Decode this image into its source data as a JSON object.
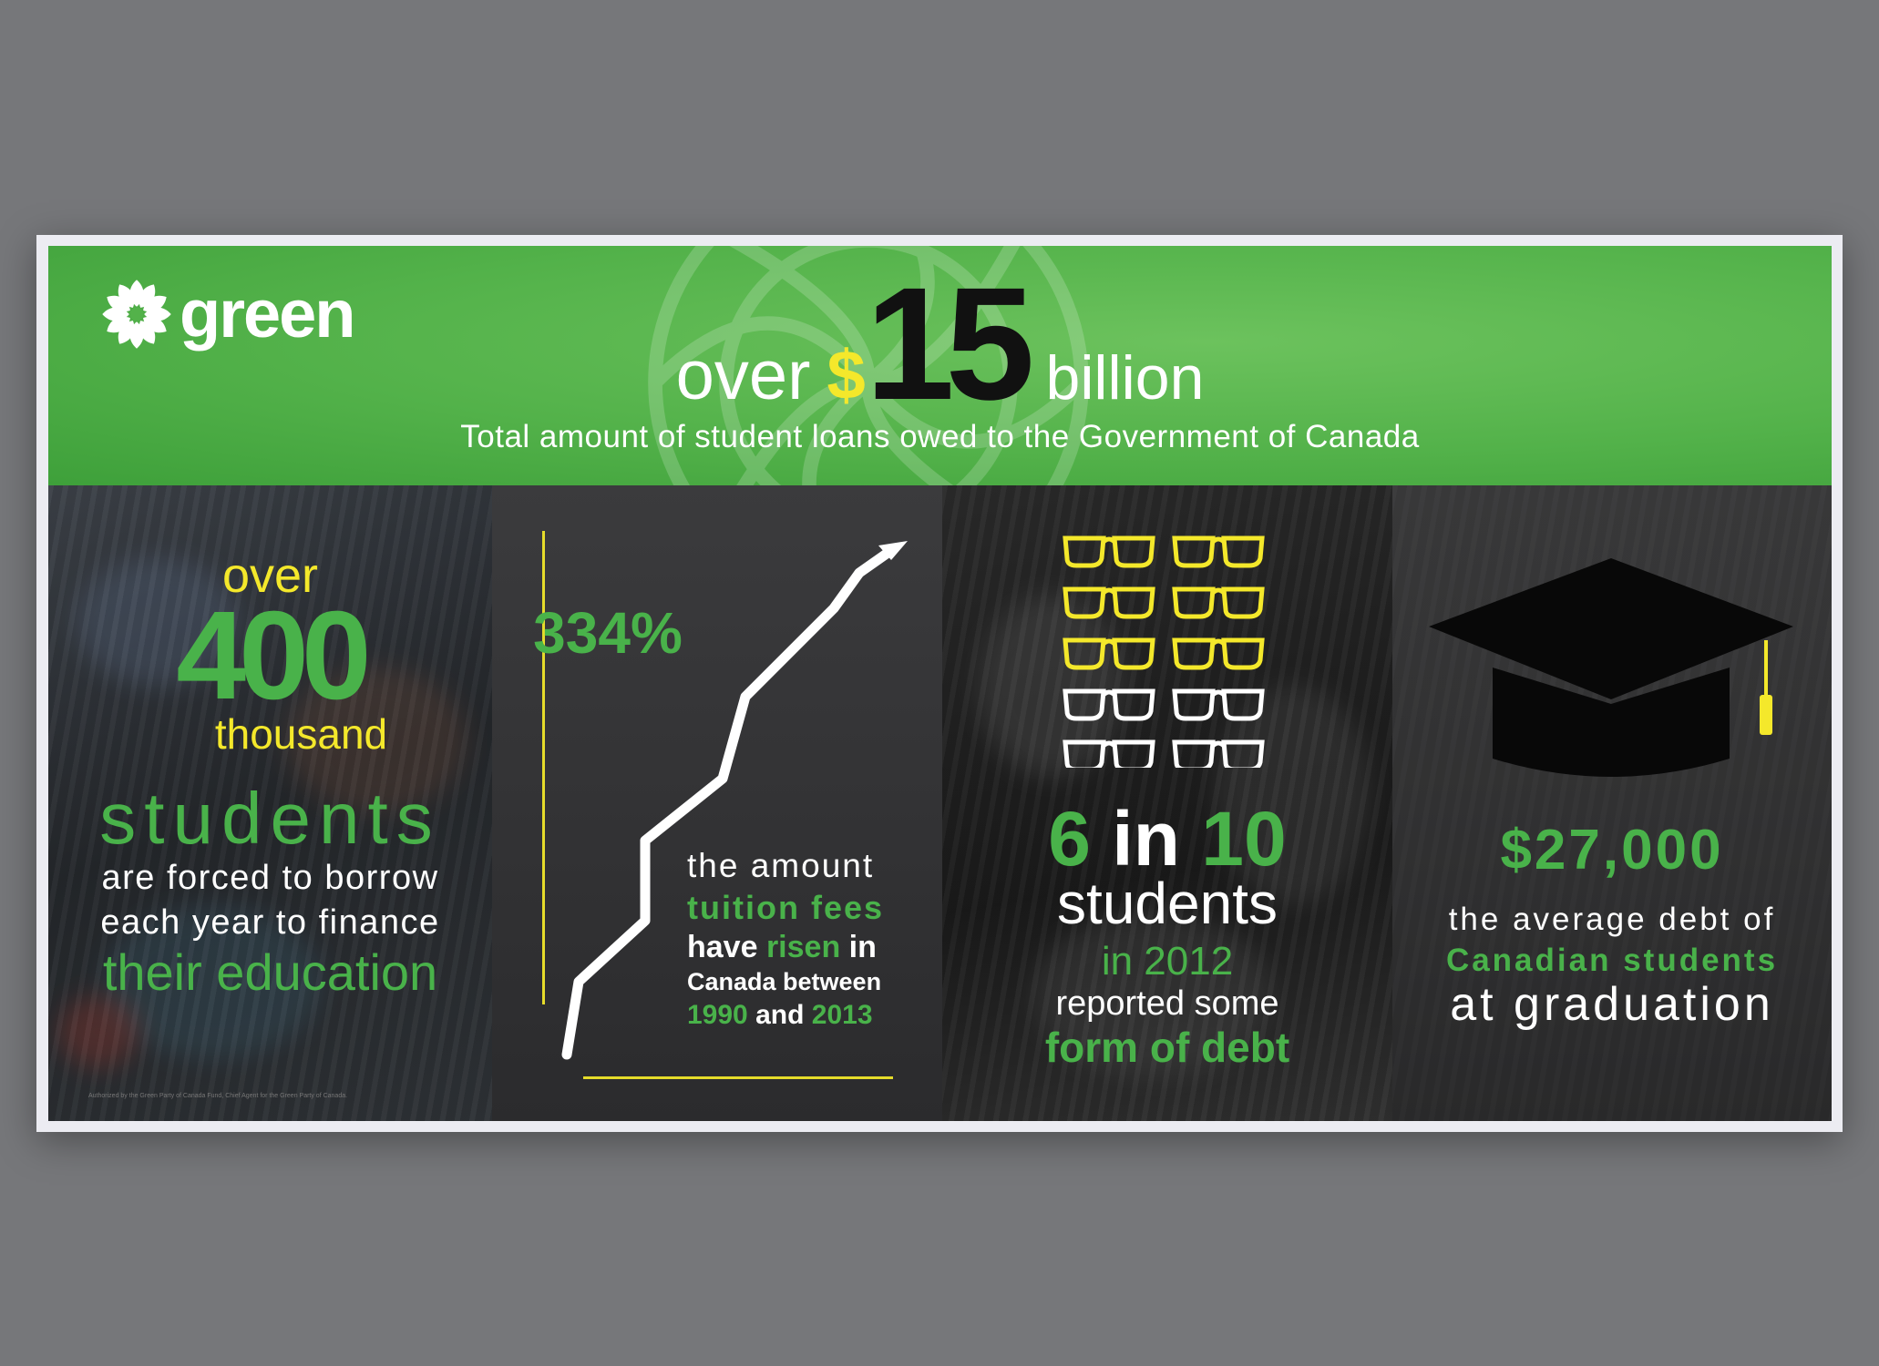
{
  "brand": {
    "logo_text": "green"
  },
  "header": {
    "over": "over",
    "currency": "$",
    "amount": "15",
    "unit": "billion",
    "caption": "Total amount of student loans owed to the Government of Canada"
  },
  "panel_students": {
    "over": "over",
    "number": "400",
    "thousand": "thousand",
    "students": "students",
    "line1": "are forced to borrow",
    "line2": "each year to finance",
    "line3": "their education",
    "legal": "Authorized by the Green Party of Canada Fund, Chief Agent for the Green Party of Canada."
  },
  "panel_tuition": {
    "percent": "334%",
    "line1": "the amount",
    "line2": "tuition fees",
    "line3_a": "have ",
    "line3_b": "risen",
    "line3_c": " in",
    "line4": "Canada between",
    "line5_a": "1990",
    "line5_b": " and ",
    "line5_c": "2013"
  },
  "panel_ratio": {
    "six": "6",
    "in": " in ",
    "ten": "10",
    "students": "students",
    "year": "in 2012",
    "line1": "reported some",
    "line2": "form of debt",
    "glasses": {
      "highlighted": 6,
      "total": 10
    }
  },
  "panel_debt": {
    "amount": "$27,000",
    "line1": "the average debt of",
    "line2": "Canadian students",
    "line3": "at graduation"
  },
  "colors": {
    "green": "#49b24a",
    "yellow": "#f4e82b",
    "banner": "#53b24a",
    "dark": "#2b2b2d"
  },
  "icons": [
    "flower-logo-icon",
    "rising-line-arrow-icon",
    "glasses-icon",
    "graduation-cap-icon"
  ]
}
